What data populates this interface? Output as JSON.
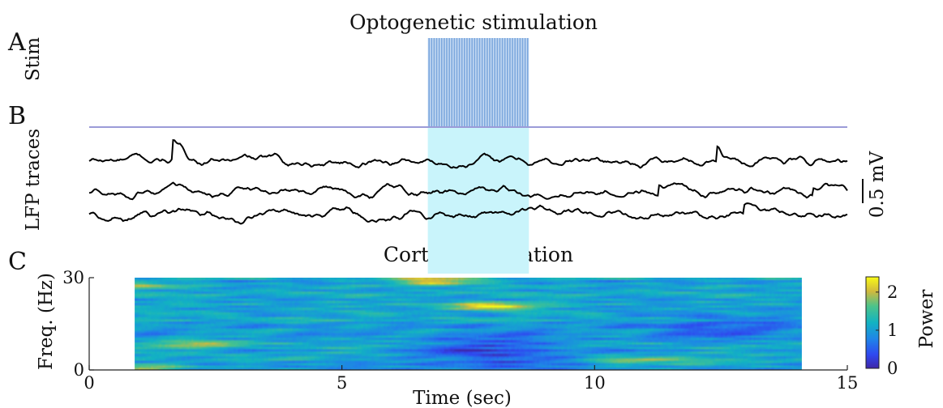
{
  "panels": {
    "a": "A",
    "b": "B",
    "c": "C"
  },
  "chart_data": [
    {
      "type": "line",
      "panel": "A",
      "title": "Optogenetic stimulation",
      "ylabel": "Stim",
      "xlim": [
        0,
        15
      ],
      "stim_window": [
        6.7,
        8.7
      ],
      "pulse_count": 40,
      "colors": {
        "pulse": "#7ba7dd",
        "baseline": "#9b9bd8"
      }
    },
    {
      "type": "line",
      "panel": "B",
      "ylabel": "LFP traces",
      "scale_bar": "0.5 mV",
      "xlim": [
        0,
        15
      ],
      "stim_window": [
        6.7,
        8.7
      ],
      "series": [
        {
          "offset": 0.0,
          "events": [
            {
              "t": 1.6,
              "h": 0.22
            },
            {
              "t": 11.8,
              "h": 0.18
            },
            {
              "t": 14.8,
              "h": 0.12
            }
          ]
        },
        {
          "offset": -0.38,
          "events": [
            {
              "t": 10.7,
              "h": 0.12
            },
            {
              "t": 13.6,
              "h": 0.1
            }
          ]
        },
        {
          "offset": -0.66,
          "events": [
            {
              "t": 12.3,
              "h": 0.1
            }
          ]
        }
      ],
      "colors": {
        "trace": "#000000",
        "highlight": "#c9f4fb"
      }
    },
    {
      "type": "heatmap",
      "panel": "C",
      "title": "Cortical activation",
      "xlabel": "Time (sec)",
      "ylabel": "Freq. (Hz)",
      "xlim": [
        0,
        15
      ],
      "xticks": [
        0,
        5,
        10,
        15
      ],
      "data_xrange": [
        0.9,
        14.1
      ],
      "ylim": [
        0,
        30
      ],
      "yticks": [
        0,
        30
      ],
      "colorbar": {
        "label": "Power",
        "range": [
          0,
          2.4
        ],
        "ticks": [
          0,
          1,
          2
        ]
      },
      "hotspots": [
        {
          "t": 6.9,
          "f": 28.8,
          "v": 2.35
        },
        {
          "t": 7.9,
          "f": 20.8,
          "v": 2.45
        },
        {
          "t": 2.1,
          "f": 8.5,
          "v": 1.85
        },
        {
          "t": 1.1,
          "f": 0.8,
          "v": 2.1
        },
        {
          "t": 0.9,
          "f": 27.5,
          "v": 1.8
        },
        {
          "t": 10.7,
          "f": 3.0,
          "v": 1.7
        },
        {
          "t": 12.3,
          "f": 2.5,
          "v": 1.6
        }
      ],
      "coldspots": [
        {
          "t": 8.0,
          "f": 6.0,
          "v": 0.3
        },
        {
          "t": 12.6,
          "f": 14.0,
          "v": 0.6
        }
      ]
    }
  ]
}
